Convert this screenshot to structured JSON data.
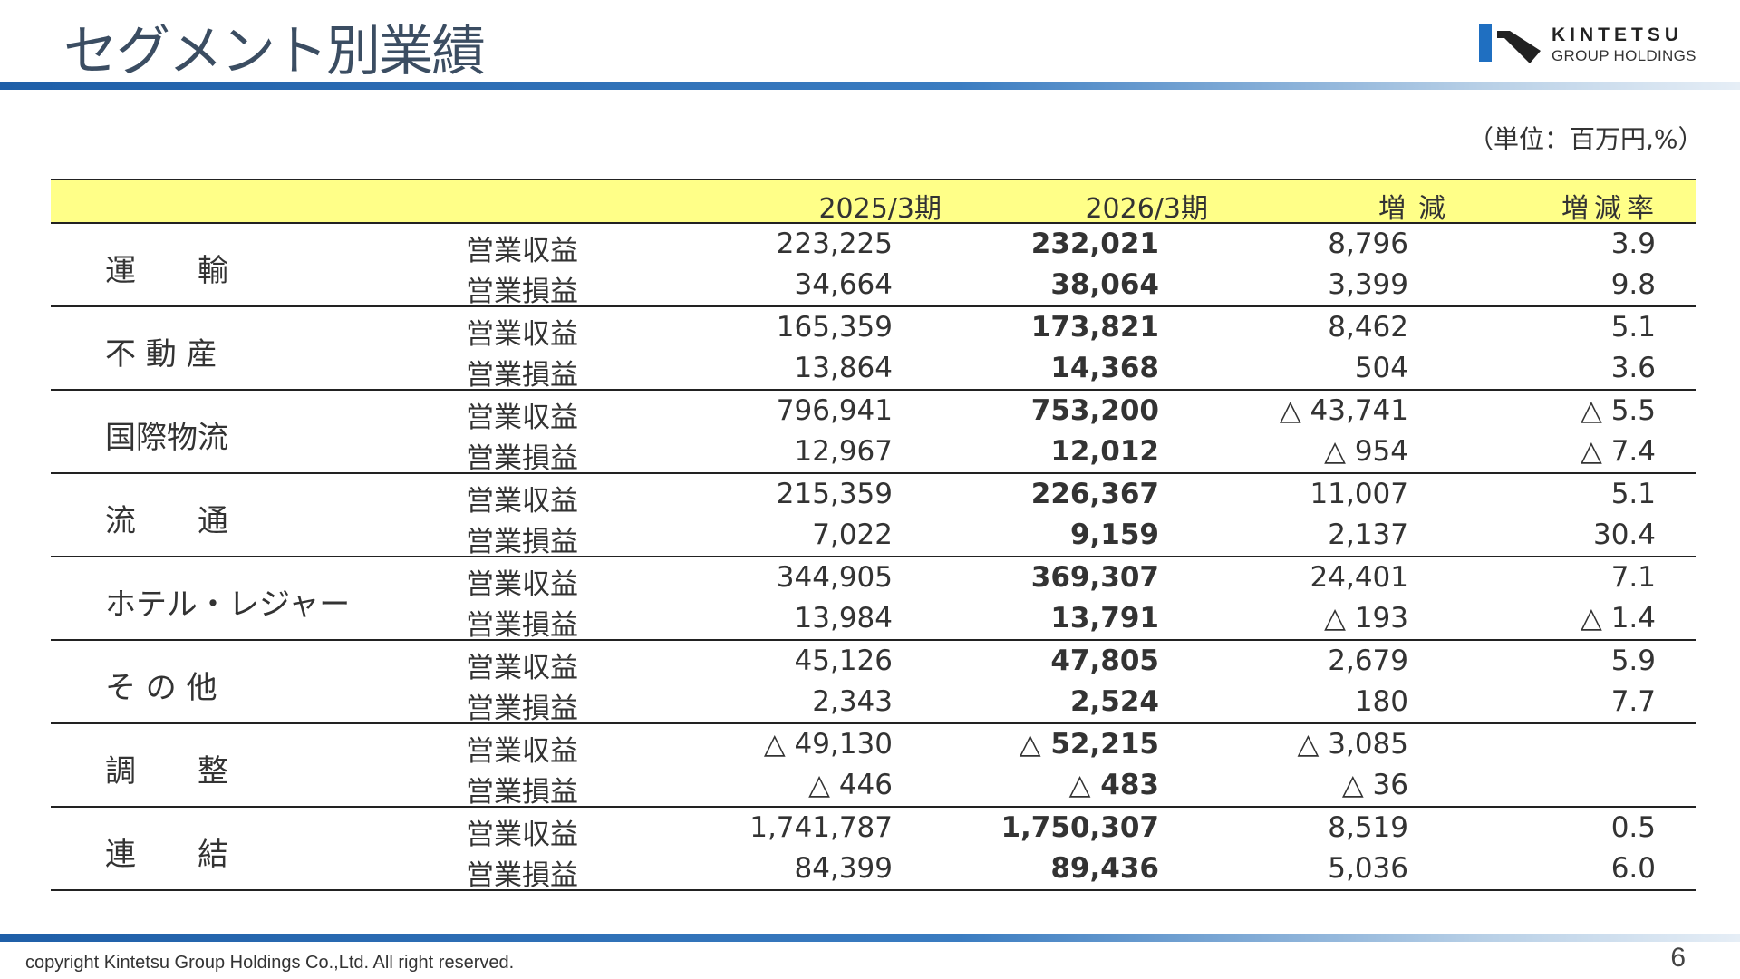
{
  "title": "セグメント別業績",
  "logo": {
    "name": "KINTETSU",
    "sub": "GROUP HOLDINGS"
  },
  "unit": "（単位：百万円,%）",
  "header": {
    "prev": "2025/3期",
    "cur": "2026/3期",
    "change": "増減",
    "rate": "増減率"
  },
  "segments": [
    {
      "name": "運　　輸",
      "rows": [
        {
          "label": "営業収益",
          "prev": "223,225",
          "cur": "232,021",
          "change": "8,796",
          "rate": "3.9"
        },
        {
          "label": "営業損益",
          "prev": "34,664",
          "cur": "38,064",
          "change": "3,399",
          "rate": "9.8"
        }
      ]
    },
    {
      "name": "不 動 産",
      "rows": [
        {
          "label": "営業収益",
          "prev": "165,359",
          "cur": "173,821",
          "change": "8,462",
          "rate": "5.1"
        },
        {
          "label": "営業損益",
          "prev": "13,864",
          "cur": "14,368",
          "change": "504",
          "rate": "3.6"
        }
      ]
    },
    {
      "name": "国際物流",
      "rows": [
        {
          "label": "営業収益",
          "prev": "796,941",
          "cur": "753,200",
          "change": "△ 43,741",
          "rate": "△ 5.5"
        },
        {
          "label": "営業損益",
          "prev": "12,967",
          "cur": "12,012",
          "change": "△ 954",
          "rate": "△ 7.4"
        }
      ]
    },
    {
      "name": "流　　通",
      "rows": [
        {
          "label": "営業収益",
          "prev": "215,359",
          "cur": "226,367",
          "change": "11,007",
          "rate": "5.1"
        },
        {
          "label": "営業損益",
          "prev": "7,022",
          "cur": "9,159",
          "change": "2,137",
          "rate": "30.4"
        }
      ]
    },
    {
      "name": "ホテル・レジャー",
      "rows": [
        {
          "label": "営業収益",
          "prev": "344,905",
          "cur": "369,307",
          "change": "24,401",
          "rate": "7.1"
        },
        {
          "label": "営業損益",
          "prev": "13,984",
          "cur": "13,791",
          "change": "△ 193",
          "rate": "△ 1.4"
        }
      ]
    },
    {
      "name": "そ の 他",
      "rows": [
        {
          "label": "営業収益",
          "prev": "45,126",
          "cur": "47,805",
          "change": "2,679",
          "rate": "5.9"
        },
        {
          "label": "営業損益",
          "prev": "2,343",
          "cur": "2,524",
          "change": "180",
          "rate": "7.7"
        }
      ]
    },
    {
      "name": "調　　整",
      "rows": [
        {
          "label": "営業収益",
          "prev": "△ 49,130",
          "cur": "△ 52,215",
          "change": "△ 3,085",
          "rate": ""
        },
        {
          "label": "営業損益",
          "prev": "△ 446",
          "cur": "△ 483",
          "change": "△ 36",
          "rate": ""
        }
      ]
    },
    {
      "name": "連　　結",
      "rows": [
        {
          "label": "営業収益",
          "prev": "1,741,787",
          "cur": "1,750,307",
          "change": "8,519",
          "rate": "0.5"
        },
        {
          "label": "営業損益",
          "prev": "84,399",
          "cur": "89,436",
          "change": "5,036",
          "rate": "6.0"
        }
      ]
    }
  ],
  "footer": {
    "copyright": "copyright Kintetsu Group Holdings Co.,Ltd. All right reserved.",
    "page": "6"
  }
}
